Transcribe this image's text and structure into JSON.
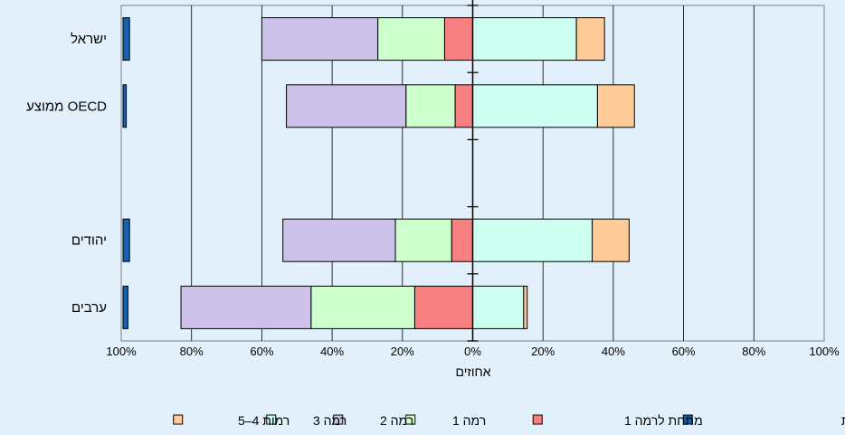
{
  "chart_data": {
    "type": "bar",
    "orientation": "horizontal",
    "stacked": "diverging",
    "categories": [
      "ישראל",
      "ממוצע OECD",
      "",
      "יהודים",
      "ערבים"
    ],
    "xlabel": "אחוזים",
    "x_ticks": [
      "100%",
      "80%",
      "60%",
      "40%",
      "20%",
      "0%",
      "20%",
      "40%",
      "60%",
      "80%",
      "100%"
    ],
    "xlim": [
      -100,
      100
    ],
    "grid": true,
    "legend_position": "bottom",
    "separate_column": {
      "name": "אי השבה הקשורה לאוריינות",
      "color": "#1560b0",
      "values": [
        2,
        1,
        null,
        2,
        1.5
      ]
    },
    "series": [
      {
        "name": "מתחת לרמה 1",
        "side": "left",
        "color": "#f77f7f",
        "values": [
          8,
          5,
          null,
          6,
          16.5
        ]
      },
      {
        "name": "רמה 1",
        "side": "left",
        "color": "#ccffcc",
        "values": [
          19,
          14,
          null,
          16,
          29.5
        ]
      },
      {
        "name": "רמה 2",
        "side": "left",
        "color": "#ccc2ea",
        "values": [
          33,
          34,
          null,
          32,
          37
        ]
      },
      {
        "name": "רמה 3",
        "side": "right",
        "color": "#ccfff0",
        "values": [
          29.5,
          35.5,
          null,
          34,
          14.5
        ]
      },
      {
        "name": "רמות 4–5",
        "side": "right",
        "color": "#ffcc99",
        "values": [
          8,
          10.5,
          null,
          10.5,
          1
        ]
      }
    ]
  }
}
